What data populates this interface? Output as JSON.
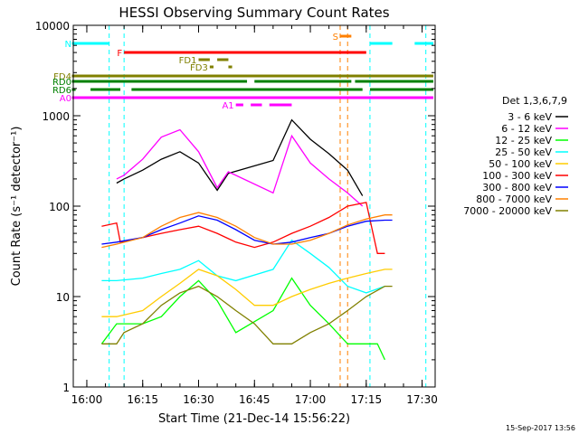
{
  "chart_data": {
    "type": "line",
    "title": "HESSI Observing Summary Count Rates",
    "xlabel": "Start Time (21-Dec-14 15:56:22)",
    "ylabel": "Count Rate (s⁻¹ detector⁻¹)",
    "y_scale": "log",
    "xlim": [
      "15:56:22",
      "17:33:30"
    ],
    "ylim": [
      1,
      10000
    ],
    "x_ticks": [
      "16:00",
      "16:15",
      "16:30",
      "16:45",
      "17:00",
      "17:15",
      "17:30"
    ],
    "y_ticks": [
      "1",
      "10",
      "100",
      "1000",
      "10000"
    ],
    "legend_title": "Det 1,3,6,7,9",
    "legend_position": "right",
    "timestamp": "15-Sep-2017 13:56",
    "series": [
      {
        "name": "3 - 6 keV",
        "color": "#000000",
        "x": [
          "16:08",
          "16:10",
          "16:15",
          "16:20",
          "16:25",
          "16:30",
          "16:35",
          "16:38",
          "16:50",
          "16:55",
          "17:00",
          "17:05",
          "17:10",
          "17:14"
        ],
        "y": [
          180,
          200,
          250,
          330,
          400,
          300,
          150,
          230,
          320,
          900,
          550,
          380,
          250,
          130
        ]
      },
      {
        "name": "6 - 12 keV",
        "color": "#ff00ff",
        "x": [
          "16:08",
          "16:10",
          "16:15",
          "16:20",
          "16:25",
          "16:30",
          "16:35",
          "16:38",
          "16:50",
          "16:55",
          "17:00",
          "17:05",
          "17:10",
          "17:14"
        ],
        "y": [
          200,
          220,
          330,
          580,
          700,
          400,
          160,
          240,
          140,
          600,
          300,
          200,
          140,
          100
        ]
      },
      {
        "name": "12 - 25 keV",
        "color": "#00ff00",
        "x": [
          "16:04",
          "16:08",
          "16:15",
          "16:20",
          "16:25",
          "16:30",
          "16:35",
          "16:40",
          "16:50",
          "16:55",
          "17:00",
          "17:05",
          "17:10",
          "17:15",
          "17:18",
          "17:20"
        ],
        "y": [
          3,
          5,
          5,
          6,
          10,
          15,
          9,
          4,
          7,
          16,
          8,
          5,
          3,
          3,
          3,
          2
        ]
      },
      {
        "name": "25 - 50 keV",
        "color": "#00ffff",
        "x": [
          "16:04",
          "16:08",
          "16:15",
          "16:20",
          "16:25",
          "16:30",
          "16:35",
          "16:40",
          "16:50",
          "16:55",
          "17:00",
          "17:05",
          "17:10",
          "17:15",
          "17:20"
        ],
        "y": [
          15,
          15,
          16,
          18,
          20,
          25,
          17,
          15,
          20,
          42,
          30,
          21,
          13,
          11,
          13
        ]
      },
      {
        "name": "50 - 100 keV",
        "color": "#ffcc00",
        "x": [
          "16:04",
          "16:08",
          "16:15",
          "16:20",
          "16:25",
          "16:30",
          "16:35",
          "16:40",
          "16:45",
          "16:50",
          "16:55",
          "17:00",
          "17:05",
          "17:10",
          "17:15",
          "17:20",
          "17:22"
        ],
        "y": [
          6,
          6,
          7,
          10,
          14,
          20,
          17,
          12,
          8,
          8,
          10,
          12,
          14,
          16,
          18,
          20,
          20
        ]
      },
      {
        "name": "100 - 300 keV",
        "color": "#ff0000",
        "x": [
          "16:04",
          "16:08",
          "16:09",
          "16:15",
          "16:20",
          "16:25",
          "16:30",
          "16:35",
          "16:40",
          "16:45",
          "16:50",
          "16:55",
          "17:00",
          "17:05",
          "17:10",
          "17:15",
          "17:18",
          "17:20"
        ],
        "y": [
          60,
          65,
          40,
          45,
          50,
          55,
          60,
          50,
          40,
          35,
          40,
          50,
          60,
          75,
          100,
          110,
          30,
          30
        ]
      },
      {
        "name": "300 - 800 keV",
        "color": "#0000ff",
        "x": [
          "16:04",
          "16:08",
          "16:15",
          "16:20",
          "16:25",
          "16:30",
          "16:35",
          "16:40",
          "16:45",
          "16:50",
          "16:55",
          "17:00",
          "17:05",
          "17:10",
          "17:15",
          "17:20",
          "17:22"
        ],
        "y": [
          38,
          40,
          45,
          55,
          65,
          78,
          70,
          55,
          42,
          38,
          40,
          45,
          50,
          60,
          68,
          70,
          70
        ]
      },
      {
        "name": "800 - 7000 keV",
        "color": "#ff8000",
        "x": [
          "16:04",
          "16:08",
          "16:15",
          "16:20",
          "16:25",
          "16:30",
          "16:35",
          "16:40",
          "16:45",
          "16:50",
          "16:55",
          "17:00",
          "17:05",
          "17:10",
          "17:15",
          "17:20",
          "17:22"
        ],
        "y": [
          35,
          38,
          45,
          60,
          75,
          85,
          75,
          60,
          45,
          38,
          38,
          42,
          50,
          62,
          72,
          80,
          80
        ]
      },
      {
        "name": "7000 - 20000 keV",
        "color": "#808000",
        "x": [
          "16:04",
          "16:08",
          "16:10",
          "16:15",
          "16:20",
          "16:25",
          "16:30",
          "16:35",
          "16:40",
          "16:45",
          "16:50",
          "16:55",
          "17:00",
          "17:05",
          "17:10",
          "17:15",
          "17:20",
          "17:22"
        ],
        "y": [
          3,
          3,
          4,
          5,
          8,
          11,
          13,
          10,
          7,
          5,
          3,
          3,
          4,
          5,
          7,
          10,
          13,
          13
        ]
      }
    ],
    "flag_bars": [
      {
        "name": "S",
        "color": "#ff8000",
        "segments": [
          [
            "17:08",
            "17:11"
          ]
        ]
      },
      {
        "name": "N",
        "color": "#00ffff",
        "segments": [
          [
            "15:56",
            "16:06"
          ],
          [
            "17:16",
            "17:22"
          ],
          [
            "17:28",
            "17:33"
          ]
        ]
      },
      {
        "name": "F",
        "color": "#ff0000",
        "segments": [
          [
            "16:10",
            "17:15"
          ]
        ]
      },
      {
        "name": "FD1",
        "color": "#808000",
        "segments": [
          [
            "16:30",
            "16:33"
          ],
          [
            "16:35",
            "16:38"
          ]
        ]
      },
      {
        "name": "FD3",
        "color": "#808000",
        "segments": [
          [
            "16:33",
            "16:34"
          ],
          [
            "16:38",
            "16:39"
          ]
        ]
      },
      {
        "name": "FD4",
        "color": "#808000",
        "segments": [
          [
            "15:56",
            "17:33"
          ]
        ]
      },
      {
        "name": "RD0",
        "color": "#008000",
        "segments": [
          [
            "15:56",
            "16:43"
          ],
          [
            "16:45",
            "17:11"
          ],
          [
            "17:12",
            "17:33"
          ]
        ]
      },
      {
        "name": "RD6",
        "color": "#008000",
        "segments": [
          [
            "15:56",
            "15:57"
          ],
          [
            "16:01",
            "16:09"
          ],
          [
            "16:12",
            "17:14"
          ],
          [
            "17:16",
            "17:33"
          ]
        ]
      },
      {
        "name": "A0",
        "color": "#ff00ff",
        "segments": [
          [
            "15:56",
            "17:33"
          ]
        ]
      },
      {
        "name": "A1",
        "color": "#ff00ff",
        "segments": [
          [
            "16:40",
            "16:42"
          ],
          [
            "16:44",
            "16:47"
          ],
          [
            "16:49",
            "16:55"
          ]
        ]
      }
    ],
    "vertical_markers": [
      {
        "color": "#00ffff",
        "x": [
          "16:06",
          "16:10",
          "17:16",
          "17:31"
        ]
      },
      {
        "color": "#ff8000",
        "x": [
          "17:08",
          "17:10"
        ]
      }
    ]
  }
}
